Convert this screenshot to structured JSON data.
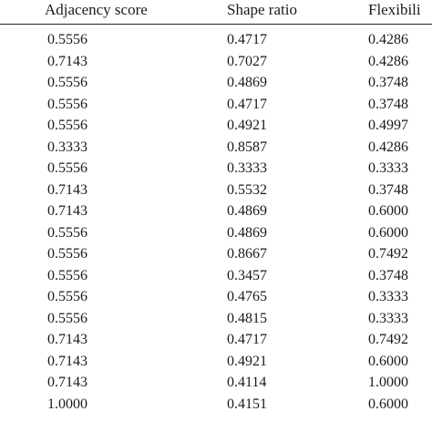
{
  "table": {
    "headers": [
      "Adjacency score",
      "Shape ratio",
      "Flexibili"
    ],
    "rows": [
      [
        "0.5556",
        "0.4717",
        "0.4286"
      ],
      [
        "0.7143",
        "0.7027",
        "0.4286"
      ],
      [
        "0.5556",
        "0.4869",
        "0.3748"
      ],
      [
        "0.5556",
        "0.4717",
        "0.3748"
      ],
      [
        "0.5556",
        "0.4921",
        "0.4997"
      ],
      [
        "0.3333",
        "0.8587",
        "0.4286"
      ],
      [
        "0.5556",
        "0.3333",
        "0.3333"
      ],
      [
        "0.7143",
        "0.5532",
        "0.3748"
      ],
      [
        "0.7143",
        "0.4869",
        "0.6000"
      ],
      [
        "0.5556",
        "0.4869",
        "0.6000"
      ],
      [
        "0.5556",
        "0.8667",
        "0.7492"
      ],
      [
        "0.5556",
        "0.3457",
        "0.3748"
      ],
      [
        "0.5556",
        "0.4765",
        "0.3333"
      ],
      [
        "0.5556",
        "0.4815",
        "0.3333"
      ],
      [
        "0.7143",
        "0.4717",
        "0.7492"
      ],
      [
        "0.7143",
        "0.4921",
        "0.6000"
      ],
      [
        "0.7143",
        "0.4114",
        "1.0000"
      ],
      [
        "1.0000",
        "0.4151",
        "0.6000"
      ]
    ]
  }
}
